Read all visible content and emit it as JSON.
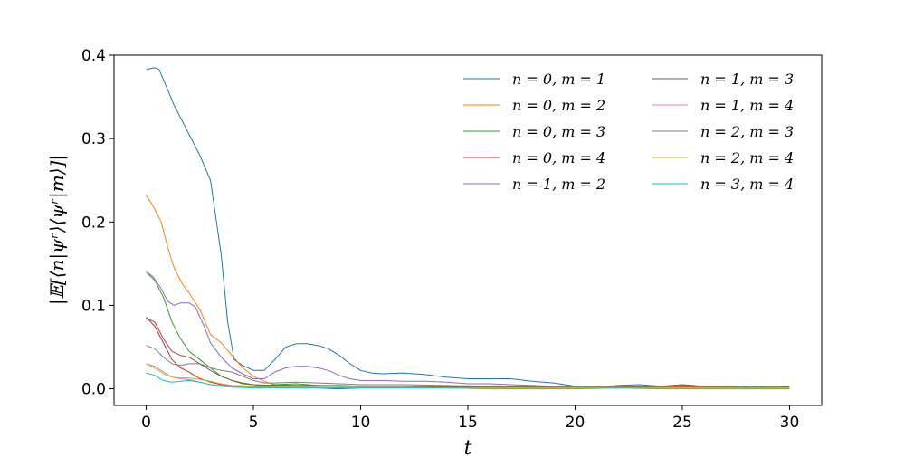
{
  "chart_data": {
    "type": "line",
    "title": "",
    "xlabel": "t",
    "ylabel": "|𝔼[⟨n|ψʳ⟩⟨ψʳ|m⟩]|",
    "xlim": [
      -1.5,
      31.5
    ],
    "ylim": [
      -0.02,
      0.4
    ],
    "x_ticks": [
      0,
      5,
      10,
      15,
      20,
      25,
      30
    ],
    "x_tick_labels": [
      "0",
      "5",
      "10",
      "15",
      "20",
      "25",
      "30"
    ],
    "y_ticks": [
      0.0,
      0.1,
      0.2,
      0.3,
      0.4
    ],
    "y_tick_labels": [
      "0.0",
      "0.1",
      "0.2",
      "0.3",
      "0.4"
    ],
    "grid": false,
    "legend_position": "top-right",
    "legend_columns": 2,
    "series": [
      {
        "name": "n = 0, m = 1",
        "color": "#1f77b4",
        "points": [
          [
            0,
            0.383
          ],
          [
            0.4,
            0.385
          ],
          [
            0.6,
            0.383
          ],
          [
            1.3,
            0.34
          ],
          [
            2,
            0.305
          ],
          [
            2.5,
            0.28
          ],
          [
            3,
            0.25
          ],
          [
            3.5,
            0.16
          ],
          [
            3.8,
            0.08
          ],
          [
            4.1,
            0.035
          ],
          [
            4.5,
            0.028
          ],
          [
            5,
            0.022
          ],
          [
            5.5,
            0.022
          ],
          [
            6,
            0.035
          ],
          [
            6.5,
            0.05
          ],
          [
            7,
            0.054
          ],
          [
            7.5,
            0.054
          ],
          [
            8,
            0.052
          ],
          [
            8.5,
            0.048
          ],
          [
            9,
            0.04
          ],
          [
            9.5,
            0.03
          ],
          [
            10,
            0.022
          ],
          [
            10.5,
            0.019
          ],
          [
            11,
            0.018
          ],
          [
            12,
            0.019
          ],
          [
            13,
            0.017
          ],
          [
            14,
            0.014
          ],
          [
            15,
            0.012
          ],
          [
            16,
            0.012
          ],
          [
            17,
            0.012
          ],
          [
            18,
            0.009
          ],
          [
            19,
            0.007
          ],
          [
            20,
            0.003
          ],
          [
            21,
            0.002
          ],
          [
            22,
            0.004
          ],
          [
            23,
            0.005
          ],
          [
            24,
            0.003
          ],
          [
            25,
            0.002
          ],
          [
            26,
            0.003
          ],
          [
            27,
            0.002
          ],
          [
            28,
            0.003
          ],
          [
            29,
            0.002
          ],
          [
            30,
            0.001
          ]
        ]
      },
      {
        "name": "n = 0, m = 2",
        "color": "#ff7f0e",
        "points": [
          [
            0,
            0.232
          ],
          [
            0.3,
            0.22
          ],
          [
            0.7,
            0.2
          ],
          [
            1,
            0.17
          ],
          [
            1.3,
            0.145
          ],
          [
            1.7,
            0.125
          ],
          [
            2,
            0.115
          ],
          [
            2.5,
            0.095
          ],
          [
            3,
            0.065
          ],
          [
            3.5,
            0.055
          ],
          [
            4,
            0.04
          ],
          [
            4.5,
            0.025
          ],
          [
            5,
            0.015
          ],
          [
            5.5,
            0.009
          ],
          [
            6,
            0.005
          ],
          [
            7,
            0.004
          ],
          [
            8,
            0.004
          ],
          [
            9,
            0.003
          ],
          [
            10,
            0.003
          ],
          [
            12,
            0.003
          ],
          [
            14,
            0.003
          ],
          [
            16,
            0.002
          ],
          [
            18,
            0.002
          ],
          [
            20,
            0.002
          ],
          [
            22,
            0.003
          ],
          [
            24,
            0.002
          ],
          [
            26,
            0.003
          ],
          [
            28,
            0.002
          ],
          [
            30,
            0.002
          ]
        ]
      },
      {
        "name": "n = 0, m = 3",
        "color": "#2ca02c",
        "points": [
          [
            0,
            0.14
          ],
          [
            0.4,
            0.13
          ],
          [
            0.8,
            0.11
          ],
          [
            1.2,
            0.08
          ],
          [
            1.6,
            0.06
          ],
          [
            2,
            0.045
          ],
          [
            2.5,
            0.035
          ],
          [
            3,
            0.025
          ],
          [
            3.5,
            0.015
          ],
          [
            4,
            0.01
          ],
          [
            4.5,
            0.006
          ],
          [
            5,
            0.005
          ],
          [
            5.5,
            0.004
          ],
          [
            6,
            0.005
          ],
          [
            7,
            0.006
          ],
          [
            8,
            0.004
          ],
          [
            9,
            0.003
          ],
          [
            10,
            0.003
          ],
          [
            12,
            0.002
          ],
          [
            14,
            0.002
          ],
          [
            16,
            0.002
          ],
          [
            18,
            0.002
          ],
          [
            20,
            0.001
          ],
          [
            22,
            0.002
          ],
          [
            24,
            0.002
          ],
          [
            26,
            0.002
          ],
          [
            28,
            0.001
          ],
          [
            30,
            0.002
          ]
        ]
      },
      {
        "name": "n = 0, m = 4",
        "color": "#d62728",
        "points": [
          [
            0,
            0.086
          ],
          [
            0.4,
            0.075
          ],
          [
            0.8,
            0.055
          ],
          [
            1.2,
            0.035
          ],
          [
            1.6,
            0.025
          ],
          [
            2,
            0.02
          ],
          [
            2.5,
            0.012
          ],
          [
            3,
            0.008
          ],
          [
            3.5,
            0.005
          ],
          [
            4,
            0.004
          ],
          [
            5,
            0.003
          ],
          [
            6,
            0.002
          ],
          [
            7,
            0.001
          ],
          [
            8,
            0.001
          ],
          [
            9,
            0.0
          ],
          [
            10,
            0.001
          ],
          [
            12,
            0.001
          ],
          [
            14,
            0.001
          ],
          [
            16,
            0.001
          ],
          [
            18,
            0.001
          ],
          [
            20,
            0.001
          ],
          [
            22,
            0.001
          ],
          [
            24,
            0.002
          ],
          [
            25,
            0.004
          ],
          [
            26,
            0.002
          ],
          [
            28,
            0.001
          ],
          [
            30,
            0.001
          ]
        ]
      },
      {
        "name": "n = 1, m = 2",
        "color": "#9467bd",
        "points": [
          [
            0,
            0.14
          ],
          [
            0.3,
            0.135
          ],
          [
            0.7,
            0.12
          ],
          [
            1,
            0.105
          ],
          [
            1.3,
            0.1
          ],
          [
            1.6,
            0.103
          ],
          [
            2,
            0.103
          ],
          [
            2.3,
            0.098
          ],
          [
            2.7,
            0.075
          ],
          [
            3,
            0.055
          ],
          [
            3.5,
            0.038
          ],
          [
            4,
            0.025
          ],
          [
            4.5,
            0.018
          ],
          [
            5,
            0.012
          ],
          [
            5.5,
            0.012
          ],
          [
            6,
            0.02
          ],
          [
            6.5,
            0.025
          ],
          [
            7,
            0.027
          ],
          [
            7.5,
            0.027
          ],
          [
            8,
            0.025
          ],
          [
            8.5,
            0.022
          ],
          [
            9,
            0.016
          ],
          [
            9.5,
            0.012
          ],
          [
            10,
            0.01
          ],
          [
            11,
            0.01
          ],
          [
            12,
            0.009
          ],
          [
            13,
            0.009
          ],
          [
            14,
            0.008
          ],
          [
            15,
            0.006
          ],
          [
            16,
            0.006
          ],
          [
            17,
            0.005
          ],
          [
            18,
            0.004
          ],
          [
            19,
            0.003
          ],
          [
            20,
            0.002
          ],
          [
            22,
            0.002
          ],
          [
            24,
            0.002
          ],
          [
            26,
            0.002
          ],
          [
            28,
            0.002
          ],
          [
            30,
            0.001
          ]
        ]
      },
      {
        "name": "n = 1, m = 3",
        "color": "#8c564b",
        "points": [
          [
            0,
            0.085
          ],
          [
            0.4,
            0.08
          ],
          [
            0.8,
            0.06
          ],
          [
            1.2,
            0.045
          ],
          [
            1.6,
            0.04
          ],
          [
            2,
            0.038
          ],
          [
            2.5,
            0.03
          ],
          [
            3,
            0.022
          ],
          [
            3.5,
            0.015
          ],
          [
            4,
            0.01
          ],
          [
            4.5,
            0.007
          ],
          [
            5,
            0.005
          ],
          [
            6,
            0.004
          ],
          [
            7,
            0.004
          ],
          [
            8,
            0.004
          ],
          [
            9,
            0.004
          ],
          [
            10,
            0.003
          ],
          [
            12,
            0.003
          ],
          [
            14,
            0.002
          ],
          [
            16,
            0.002
          ],
          [
            18,
            0.002
          ],
          [
            20,
            0.001
          ],
          [
            22,
            0.002
          ],
          [
            24,
            0.003
          ],
          [
            25,
            0.005
          ],
          [
            26,
            0.003
          ],
          [
            28,
            0.002
          ],
          [
            30,
            0.002
          ]
        ]
      },
      {
        "name": "n = 1, m = 4",
        "color": "#e377c2",
        "points": [
          [
            0,
            0.03
          ],
          [
            0.4,
            0.027
          ],
          [
            0.8,
            0.02
          ],
          [
            1.2,
            0.014
          ],
          [
            1.6,
            0.012
          ],
          [
            2,
            0.011
          ],
          [
            2.5,
            0.008
          ],
          [
            3,
            0.005
          ],
          [
            3.5,
            0.004
          ],
          [
            4,
            0.003
          ],
          [
            5,
            0.002
          ],
          [
            6,
            0.002
          ],
          [
            7,
            0.002
          ],
          [
            8,
            0.002
          ],
          [
            9,
            0.001
          ],
          [
            10,
            0.001
          ],
          [
            12,
            0.001
          ],
          [
            14,
            0.001
          ],
          [
            16,
            0.001
          ],
          [
            18,
            0.001
          ],
          [
            20,
            0.001
          ],
          [
            22,
            0.001
          ],
          [
            24,
            0.001
          ],
          [
            26,
            0.001
          ],
          [
            28,
            0.001
          ],
          [
            30,
            0.001
          ]
        ]
      },
      {
        "name": "n = 2, m = 3",
        "color": "#7f7f7f",
        "points": [
          [
            0,
            0.052
          ],
          [
            0.4,
            0.048
          ],
          [
            0.8,
            0.038
          ],
          [
            1.2,
            0.03
          ],
          [
            1.6,
            0.028
          ],
          [
            2,
            0.03
          ],
          [
            2.5,
            0.03
          ],
          [
            3,
            0.025
          ],
          [
            3.5,
            0.022
          ],
          [
            4,
            0.02
          ],
          [
            4.5,
            0.015
          ],
          [
            5,
            0.01
          ],
          [
            5.5,
            0.007
          ],
          [
            6,
            0.007
          ],
          [
            7,
            0.008
          ],
          [
            8,
            0.007
          ],
          [
            9,
            0.006
          ],
          [
            10,
            0.005
          ],
          [
            12,
            0.005
          ],
          [
            14,
            0.004
          ],
          [
            16,
            0.003
          ],
          [
            18,
            0.003
          ],
          [
            20,
            0.002
          ],
          [
            22,
            0.002
          ],
          [
            24,
            0.002
          ],
          [
            26,
            0.002
          ],
          [
            28,
            0.002
          ],
          [
            30,
            0.001
          ]
        ]
      },
      {
        "name": "n = 2, m = 4",
        "color": "#bcbd22",
        "points": [
          [
            0,
            0.03
          ],
          [
            0.4,
            0.025
          ],
          [
            0.8,
            0.018
          ],
          [
            1.2,
            0.014
          ],
          [
            1.6,
            0.013
          ],
          [
            2,
            0.013
          ],
          [
            2.5,
            0.011
          ],
          [
            3,
            0.009
          ],
          [
            3.5,
            0.006
          ],
          [
            4,
            0.004
          ],
          [
            5,
            0.003
          ],
          [
            6,
            0.003
          ],
          [
            7,
            0.003
          ],
          [
            8,
            0.002
          ],
          [
            9,
            0.002
          ],
          [
            10,
            0.002
          ],
          [
            12,
            0.002
          ],
          [
            14,
            0.001
          ],
          [
            16,
            0.001
          ],
          [
            18,
            0.001
          ],
          [
            20,
            0.001
          ],
          [
            22,
            0.001
          ],
          [
            24,
            0.001
          ],
          [
            26,
            0.001
          ],
          [
            28,
            0.001
          ],
          [
            30,
            0.001
          ]
        ]
      },
      {
        "name": "n = 3, m = 4",
        "color": "#17becf",
        "points": [
          [
            0,
            0.019
          ],
          [
            0.4,
            0.016
          ],
          [
            0.8,
            0.01
          ],
          [
            1.2,
            0.008
          ],
          [
            1.6,
            0.009
          ],
          [
            2,
            0.01
          ],
          [
            2.5,
            0.008
          ],
          [
            3,
            0.005
          ],
          [
            3.5,
            0.003
          ],
          [
            4,
            0.002
          ],
          [
            5,
            0.001
          ],
          [
            6,
            0.001
          ],
          [
            7,
            0.001
          ],
          [
            8,
            0.001
          ],
          [
            9,
            0.001
          ],
          [
            10,
            0.001
          ],
          [
            12,
            0.001
          ],
          [
            14,
            0.001
          ],
          [
            16,
            0.0
          ],
          [
            18,
            0.0
          ],
          [
            20,
            0.0
          ],
          [
            22,
            0.001
          ],
          [
            24,
            0.0
          ],
          [
            26,
            0.0
          ],
          [
            28,
            0.0
          ],
          [
            30,
            0.0
          ]
        ]
      }
    ]
  }
}
